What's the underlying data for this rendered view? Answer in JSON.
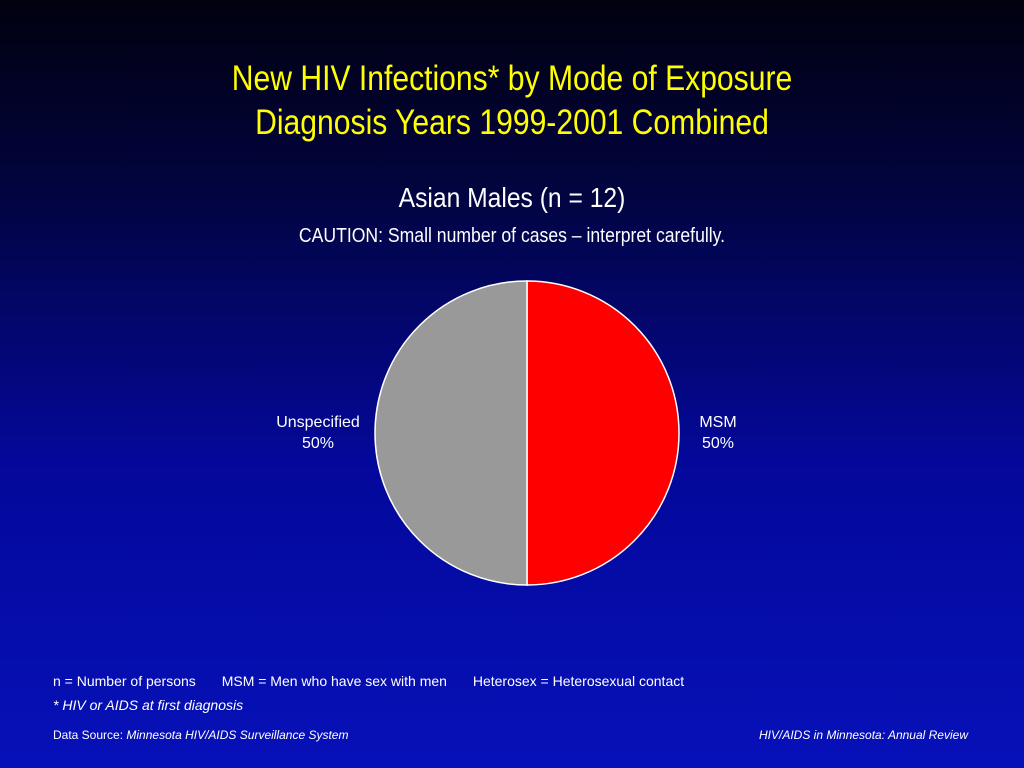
{
  "title_line1": "New HIV Infections* by Mode of Exposure",
  "title_line2": "Diagnosis Years 1999-2001 Combined",
  "subtitle": "Asian Males (n = 12)",
  "caution": "CAUTION: Small number of cases – interpret carefully.",
  "colors": {
    "title": "#ffff00",
    "text": "#ffffff",
    "msm": "#ff0000",
    "unspecified": "#999999",
    "slice_border": "#ffffff"
  },
  "chart_data": {
    "type": "pie",
    "title": "Asian Males (n = 12)",
    "slices": [
      {
        "label": "MSM",
        "value": 50,
        "display": "50%",
        "color": "#ff0000"
      },
      {
        "label": "Unspecified",
        "value": 50,
        "display": "50%",
        "color": "#999999"
      }
    ],
    "start": "12 o'clock",
    "direction": "clockwise"
  },
  "legend_notes": [
    "n = Number of persons",
    "MSM = Men who have sex with men",
    "Heterosex = Heterosexual contact"
  ],
  "footnote": "* HIV or AIDS at first diagnosis",
  "source_label": "Data Source:",
  "source_value": "Minnesota HIV/AIDS Surveillance System",
  "report_name": "HIV/AIDS in Minnesota: Annual Review"
}
